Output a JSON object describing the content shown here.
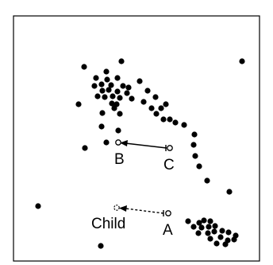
{
  "labels": {
    "b": "B",
    "c": "C",
    "a": "A",
    "child": "Child"
  },
  "colors": {
    "background": "#ffffff",
    "ink": "#000000"
  }
}
